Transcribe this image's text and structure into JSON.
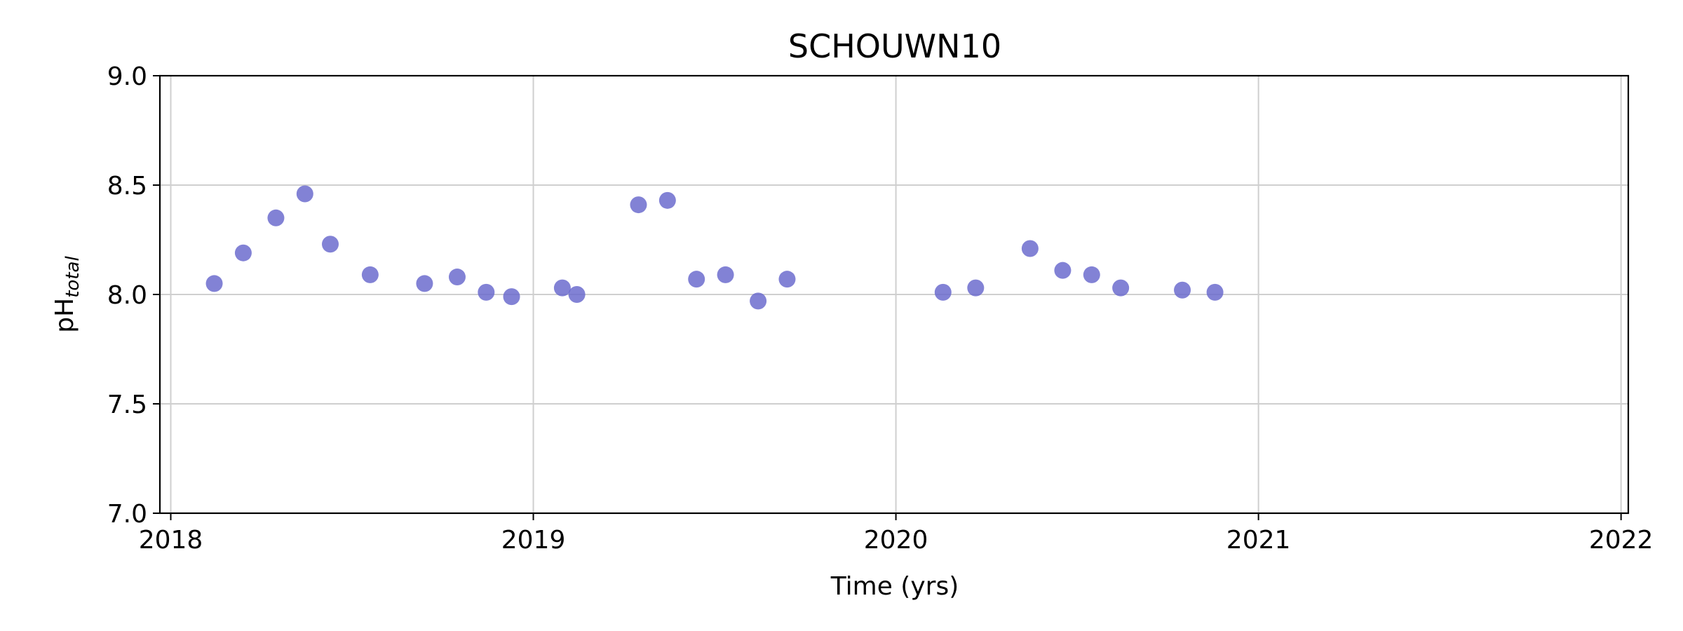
{
  "chart_data": {
    "type": "scatter",
    "title": "SCHOUWN10",
    "xlabel": "Time (yrs)",
    "ylabel": {
      "main": "pH",
      "subscript": "total"
    },
    "xlim": [
      2017.97,
      2022.02
    ],
    "ylim": [
      7.0,
      9.0
    ],
    "xticks": [
      2018,
      2019,
      2020,
      2021,
      2022
    ],
    "xtick_labels": [
      "2018",
      "2019",
      "2020",
      "2021",
      "2022"
    ],
    "yticks": [
      7.0,
      7.5,
      8.0,
      8.5,
      9.0
    ],
    "ytick_labels": [
      "7.0",
      "7.5",
      "8.0",
      "8.5",
      "9.0"
    ],
    "grid": true,
    "marker_color": "#6666cc",
    "points": [
      {
        "x": 2018.12,
        "y": 8.05
      },
      {
        "x": 2018.2,
        "y": 8.19
      },
      {
        "x": 2018.29,
        "y": 8.35
      },
      {
        "x": 2018.37,
        "y": 8.46
      },
      {
        "x": 2018.44,
        "y": 8.23
      },
      {
        "x": 2018.55,
        "y": 8.09
      },
      {
        "x": 2018.7,
        "y": 8.05
      },
      {
        "x": 2018.79,
        "y": 8.08
      },
      {
        "x": 2018.87,
        "y": 8.01
      },
      {
        "x": 2018.94,
        "y": 7.99
      },
      {
        "x": 2019.08,
        "y": 8.03
      },
      {
        "x": 2019.12,
        "y": 8.0
      },
      {
        "x": 2019.29,
        "y": 8.41
      },
      {
        "x": 2019.37,
        "y": 8.43
      },
      {
        "x": 2019.45,
        "y": 8.07
      },
      {
        "x": 2019.53,
        "y": 8.09
      },
      {
        "x": 2019.62,
        "y": 7.97
      },
      {
        "x": 2019.7,
        "y": 8.07
      },
      {
        "x": 2020.13,
        "y": 8.01
      },
      {
        "x": 2020.22,
        "y": 8.03
      },
      {
        "x": 2020.37,
        "y": 8.21
      },
      {
        "x": 2020.46,
        "y": 8.11
      },
      {
        "x": 2020.54,
        "y": 8.09
      },
      {
        "x": 2020.62,
        "y": 8.03
      },
      {
        "x": 2020.79,
        "y": 8.02
      },
      {
        "x": 2020.88,
        "y": 8.01
      }
    ]
  }
}
